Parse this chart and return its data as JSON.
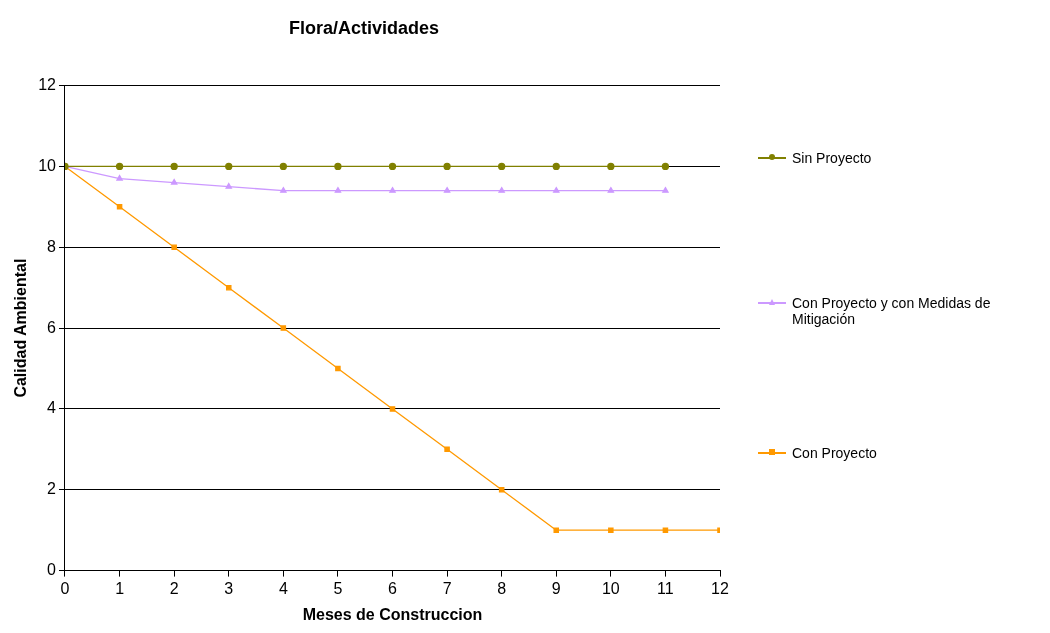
{
  "chart_data": {
    "type": "line",
    "title": "Flora/Actividades",
    "xlabel": "Meses de Construccion",
    "ylabel": "Calidad Ambiental",
    "x": [
      0,
      1,
      2,
      3,
      4,
      5,
      6,
      7,
      8,
      9,
      10,
      11,
      12
    ],
    "xlim": [
      0,
      12
    ],
    "xticks": [
      0,
      1,
      2,
      3,
      4,
      5,
      6,
      7,
      8,
      9,
      10,
      11,
      12
    ],
    "ylim": [
      0,
      12
    ],
    "yticks": [
      0,
      2,
      4,
      6,
      8,
      10,
      12
    ],
    "grid": "y",
    "legend": "right",
    "line_style": "solid",
    "series": [
      {
        "name": "Sin Proyecto",
        "color": "#808000",
        "marker": "circle",
        "values": [
          10,
          10,
          10,
          10,
          10,
          10,
          10,
          10,
          10,
          10,
          10,
          10,
          null
        ]
      },
      {
        "name": "Con Proyecto y con Medidas de Mitigación",
        "color": "#cc99ff",
        "marker": "triangle",
        "values": [
          10,
          9.7,
          9.6,
          9.5,
          9.4,
          9.4,
          9.4,
          9.4,
          9.4,
          9.4,
          9.4,
          9.4,
          null
        ]
      },
      {
        "name": "Con Proyecto",
        "color": "#ff9900",
        "marker": "square",
        "values": [
          10,
          9,
          8,
          7,
          6,
          5,
          4,
          3,
          2,
          1,
          1,
          1,
          1
        ]
      }
    ]
  }
}
